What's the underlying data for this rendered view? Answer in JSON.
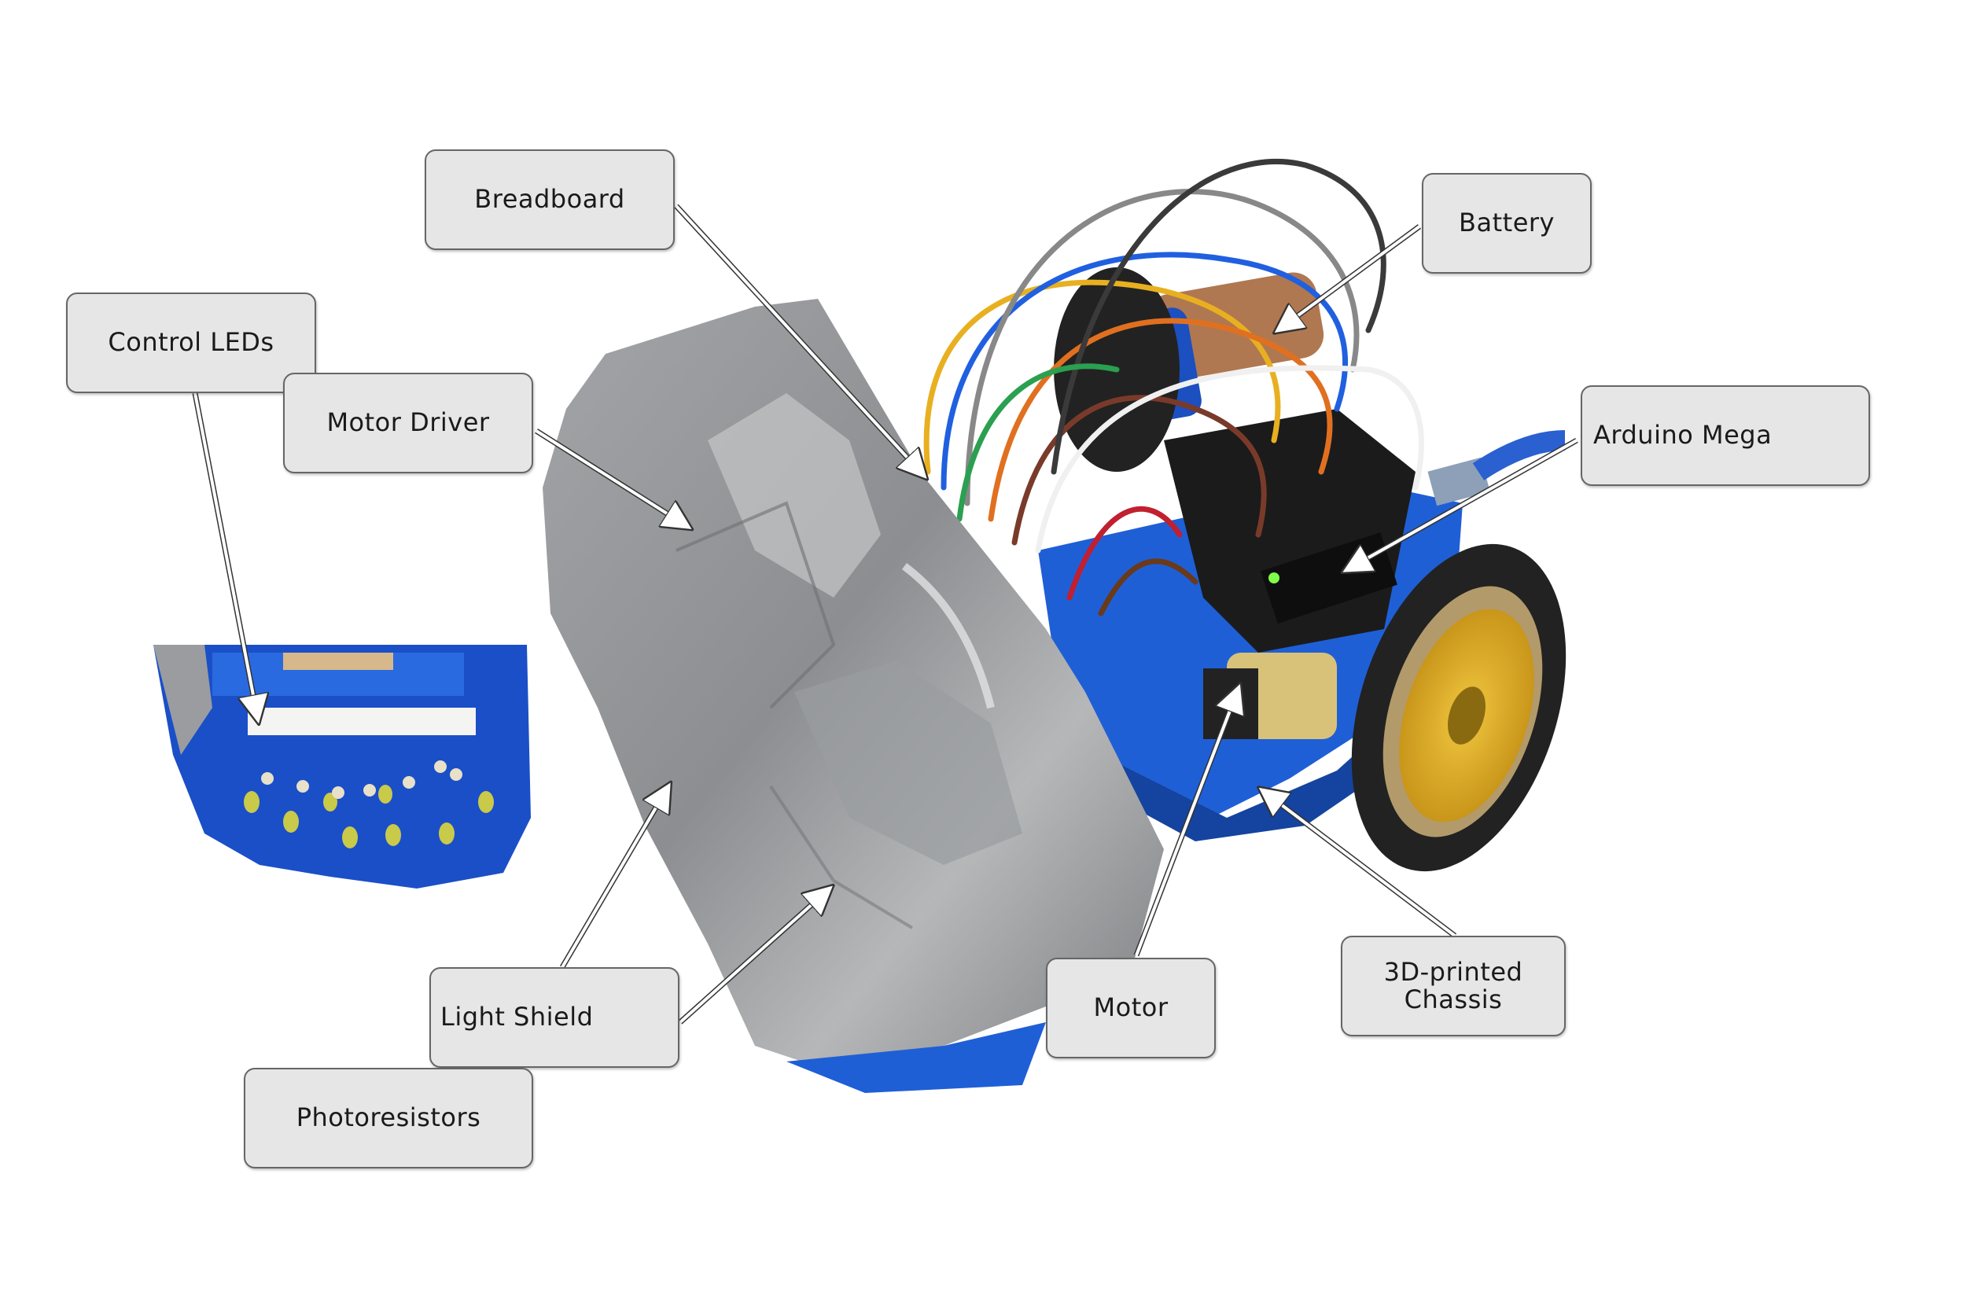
{
  "labels": {
    "breadboard": "Breadboard",
    "battery": "Battery",
    "control_leds": "Control LEDs",
    "motor_driver": "Motor Driver",
    "arduino_mega": "Arduino Mega",
    "light_shield": "Light Shield",
    "photoresistors": "Photoresistors",
    "motor": "Motor",
    "chassis_line1": "3D-printed",
    "chassis_line2": "Chassis"
  },
  "colors": {
    "tape_gray": "#8a8c8f",
    "tape_light": "#b8babc",
    "chassis_blue": "#1f5fd6",
    "board_black": "#1b1b1b",
    "wheel_yellow": "#e2b324",
    "tire_black": "#222222",
    "label_fill": "#e6e6e6",
    "label_border": "#666666"
  }
}
